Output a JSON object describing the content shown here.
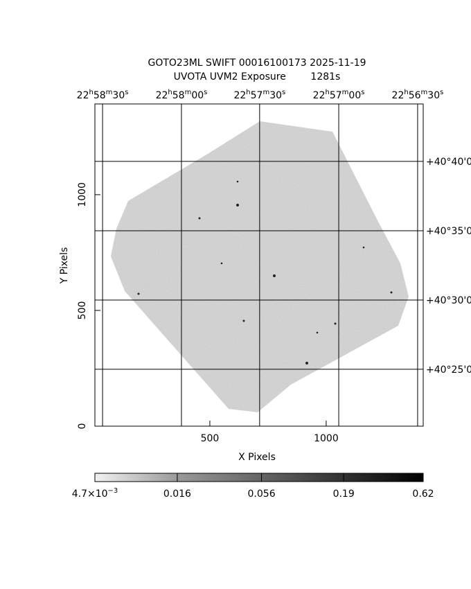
{
  "chart_data": {
    "type": "image",
    "title": [
      "GOTO23ML SWIFT 00016100173 2025-11-19",
      "UVOTA UVM2 Exposure        1281s"
    ],
    "xlabel": "X Pixels",
    "ylabel": "Y Pixels",
    "xlim": [
      6,
      1417
    ],
    "ylim": [
      0,
      1392
    ],
    "xticks": [
      500,
      1000
    ],
    "yticks": [
      0,
      500,
      1000
    ],
    "ra_ticks": [
      {
        "value": 39,
        "label": "22h58m30s"
      },
      {
        "value": 378,
        "label": "22h58m00s"
      },
      {
        "value": 714,
        "label": "22h57m30s"
      },
      {
        "value": 1054,
        "label": "22h57m00s"
      },
      {
        "value": 1393,
        "label": "22h56m30s"
      }
    ],
    "dec_ticks": [
      {
        "value": 1144,
        "label": "+40°40'0"
      },
      {
        "value": 844,
        "label": "+40°35'0"
      },
      {
        "value": 545,
        "label": "+40°30'0"
      },
      {
        "value": 246,
        "label": "+40°25'0"
      }
    ],
    "grid": true,
    "colorbar": {
      "scale": "log",
      "lim": [
        0.0047,
        0.62
      ],
      "ticks": [
        {
          "value": 0.0047,
          "label": "4.7×10−3"
        },
        0.016,
        0.056,
        0.19,
        0.62
      ]
    }
  }
}
